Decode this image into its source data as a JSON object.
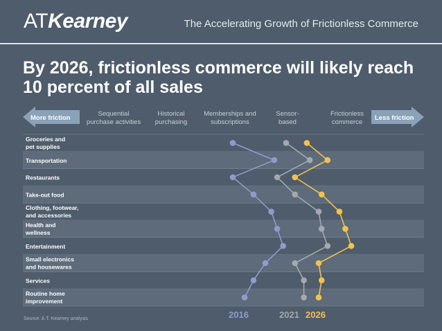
{
  "header": {
    "logo_at": "AT",
    "logo_kearney": "Kearney",
    "title": "The Accelerating Growth of Frictionless Commerce"
  },
  "headline": "By 2026, frictionless commerce will likely reach 10 percent of all sales",
  "arrows": {
    "left": "More friction",
    "right": "Less friction"
  },
  "column_headers": [
    "Sequential\npurchase activities",
    "Historical\npurchasing",
    "Memberships and\nsubscriptions",
    "Sensor-\nbased",
    "Frictionless\ncommerce"
  ],
  "source": "Source: A.T. Kearney analysis",
  "colors": {
    "background": "#4e5c6b",
    "band": "#5d6b7a",
    "s2016": "#8e9ccc",
    "s2021": "#a3a9ae",
    "s2026": "#f2c14e",
    "arrow": "#8aa2b8"
  },
  "chart_data": {
    "type": "line",
    "x_scale": "friction, 1 (more friction) to 5 (less friction)",
    "categories": [
      "Groceries and\npet supplies",
      "Transportation",
      "Restaurants",
      "Take-out food",
      "Clothing, footwear,\nand accessories",
      "Health and\nwellness",
      "Entertainment",
      "Small electronics\nand housewares",
      "Services",
      "Routine home\nimprovement"
    ],
    "series": [
      {
        "name": "2016",
        "values": [
          3.0,
          3.7,
          3.0,
          3.35,
          3.65,
          3.75,
          3.85,
          3.55,
          3.35,
          3.2
        ]
      },
      {
        "name": "2021",
        "values": [
          3.9,
          4.3,
          3.75,
          4.05,
          4.45,
          4.5,
          4.6,
          4.05,
          4.2,
          4.2
        ]
      },
      {
        "name": "2026",
        "values": [
          4.25,
          4.6,
          4.05,
          4.5,
          4.8,
          4.9,
          5.0,
          4.45,
          4.5,
          4.45
        ]
      }
    ]
  }
}
